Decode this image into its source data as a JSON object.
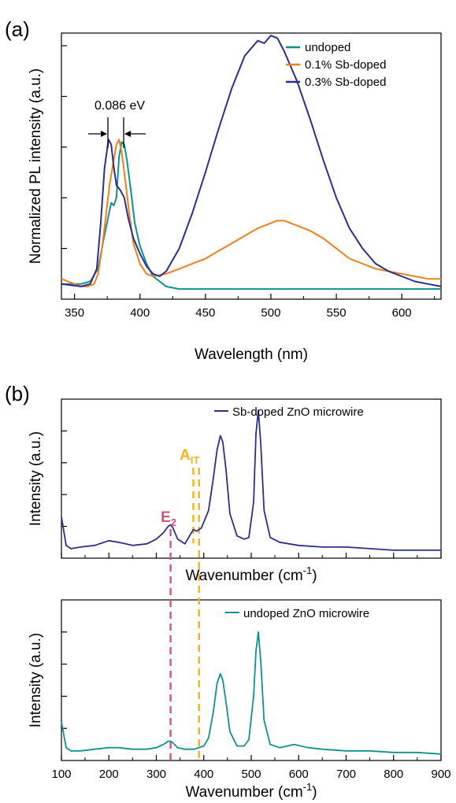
{
  "chart_data": [
    {
      "panel_label": "(a)",
      "type": "line",
      "xlabel": "Wavelength (nm)",
      "ylabel": "Normalized PL intensity (a.u.)",
      "xlim": [
        340,
        630
      ],
      "ylim": [
        0,
        1.05
      ],
      "xticks": [
        350,
        400,
        450,
        500,
        550,
        600
      ],
      "legend": "top-right",
      "annotation": "0.086 eV",
      "series": [
        {
          "name": "undoped",
          "color": "#12908e",
          "x": [
            340,
            355,
            362,
            368,
            372,
            376,
            378,
            380,
            382,
            384,
            386,
            388,
            390,
            393,
            396,
            400,
            405,
            410,
            415,
            420,
            430,
            450,
            500,
            550,
            600,
            630
          ],
          "y": [
            0.06,
            0.06,
            0.07,
            0.12,
            0.23,
            0.33,
            0.38,
            0.37,
            0.4,
            0.56,
            0.62,
            0.61,
            0.55,
            0.43,
            0.3,
            0.21,
            0.14,
            0.09,
            0.07,
            0.05,
            0.04,
            0.04,
            0.04,
            0.04,
            0.04,
            0.04
          ]
        },
        {
          "name": "0.1% Sb-doped",
          "color": "#f07f1f",
          "x": [
            340,
            350,
            355,
            360,
            365,
            368,
            371,
            374,
            377,
            380,
            382,
            384,
            386,
            389,
            392,
            395,
            400,
            405,
            410,
            420,
            430,
            440,
            450,
            460,
            470,
            480,
            490,
            500,
            505,
            510,
            520,
            530,
            540,
            550,
            560,
            570,
            580,
            590,
            600,
            610,
            620,
            630
          ],
          "y": [
            0.08,
            0.06,
            0.05,
            0.05,
            0.06,
            0.1,
            0.2,
            0.33,
            0.46,
            0.55,
            0.61,
            0.63,
            0.58,
            0.46,
            0.33,
            0.22,
            0.14,
            0.1,
            0.09,
            0.1,
            0.12,
            0.14,
            0.16,
            0.19,
            0.22,
            0.25,
            0.28,
            0.3,
            0.31,
            0.31,
            0.29,
            0.27,
            0.24,
            0.2,
            0.16,
            0.14,
            0.12,
            0.11,
            0.1,
            0.09,
            0.08,
            0.08
          ]
        },
        {
          "name": "0.3% Sb-doped",
          "color": "#2d2f8d",
          "x": [
            340,
            355,
            362,
            367,
            370,
            373,
            376,
            378,
            380,
            382,
            385,
            388,
            391,
            395,
            400,
            405,
            410,
            415,
            420,
            430,
            440,
            450,
            460,
            470,
            480,
            490,
            495,
            500,
            505,
            510,
            520,
            530,
            540,
            550,
            560,
            570,
            580,
            590,
            600,
            610,
            620,
            630
          ],
          "y": [
            0.06,
            0.05,
            0.06,
            0.12,
            0.3,
            0.52,
            0.63,
            0.61,
            0.52,
            0.45,
            0.43,
            0.4,
            0.32,
            0.24,
            0.18,
            0.13,
            0.1,
            0.09,
            0.11,
            0.2,
            0.34,
            0.5,
            0.67,
            0.83,
            0.96,
            1.02,
            1.01,
            1.04,
            1.03,
            0.98,
            0.86,
            0.71,
            0.55,
            0.4,
            0.28,
            0.2,
            0.14,
            0.11,
            0.09,
            0.07,
            0.06,
            0.05
          ]
        }
      ]
    },
    {
      "panel_label": "(b)",
      "type": "line",
      "xlabel": "Wavenumber (cm",
      "xlabel_sup": "-1",
      "xlabel_tail": ")",
      "ylabel": "Intensity (a.u.)",
      "xlim": [
        100,
        900
      ],
      "xticks": [
        100,
        200,
        300,
        400,
        500,
        600,
        700,
        800,
        900
      ],
      "ylim": [
        0,
        1.0
      ],
      "legend": "top-right",
      "annotations": {
        "e2_main": "E",
        "e2_sub": "2",
        "ait_main": "A",
        "ait_sub": "IT",
        "e2_color": "#d9507a",
        "ait_color": "#f6b21b",
        "e2_x": 330,
        "ait_x": [
          378,
          390
        ]
      },
      "series": [
        {
          "name": "Sb-doped ZnO microwire",
          "color": "#2d2f8d",
          "x": [
            100,
            105,
            110,
            120,
            140,
            170,
            200,
            220,
            250,
            280,
            300,
            315,
            325,
            330,
            335,
            345,
            360,
            370,
            378,
            385,
            395,
            410,
            420,
            428,
            435,
            440,
            447,
            455,
            470,
            485,
            495,
            505,
            510,
            515,
            520,
            527,
            540,
            560,
            600,
            650,
            700,
            750,
            800,
            850,
            900
          ],
          "y": [
            0.26,
            0.17,
            0.08,
            0.06,
            0.07,
            0.08,
            0.11,
            0.1,
            0.08,
            0.09,
            0.12,
            0.16,
            0.2,
            0.21,
            0.19,
            0.12,
            0.09,
            0.14,
            0.18,
            0.17,
            0.19,
            0.3,
            0.5,
            0.68,
            0.77,
            0.73,
            0.55,
            0.28,
            0.14,
            0.12,
            0.13,
            0.35,
            0.78,
            0.93,
            0.72,
            0.3,
            0.13,
            0.1,
            0.08,
            0.07,
            0.07,
            0.06,
            0.05,
            0.05,
            0.05
          ]
        },
        {
          "name": "undoped ZnO microwire",
          "color": "#12908e",
          "x": [
            100,
            105,
            110,
            120,
            140,
            170,
            200,
            220,
            250,
            280,
            300,
            315,
            325,
            330,
            335,
            345,
            360,
            380,
            400,
            410,
            420,
            428,
            435,
            440,
            447,
            455,
            470,
            485,
            495,
            505,
            510,
            515,
            520,
            527,
            540,
            560,
            590,
            620,
            650,
            700,
            750,
            800,
            850,
            900
          ],
          "y": [
            0.24,
            0.16,
            0.08,
            0.06,
            0.06,
            0.07,
            0.08,
            0.08,
            0.07,
            0.07,
            0.08,
            0.1,
            0.12,
            0.12,
            0.11,
            0.08,
            0.07,
            0.07,
            0.09,
            0.14,
            0.3,
            0.48,
            0.54,
            0.5,
            0.36,
            0.18,
            0.09,
            0.09,
            0.13,
            0.4,
            0.68,
            0.8,
            0.62,
            0.25,
            0.1,
            0.08,
            0.1,
            0.08,
            0.07,
            0.06,
            0.06,
            0.05,
            0.05,
            0.04
          ]
        }
      ]
    }
  ]
}
